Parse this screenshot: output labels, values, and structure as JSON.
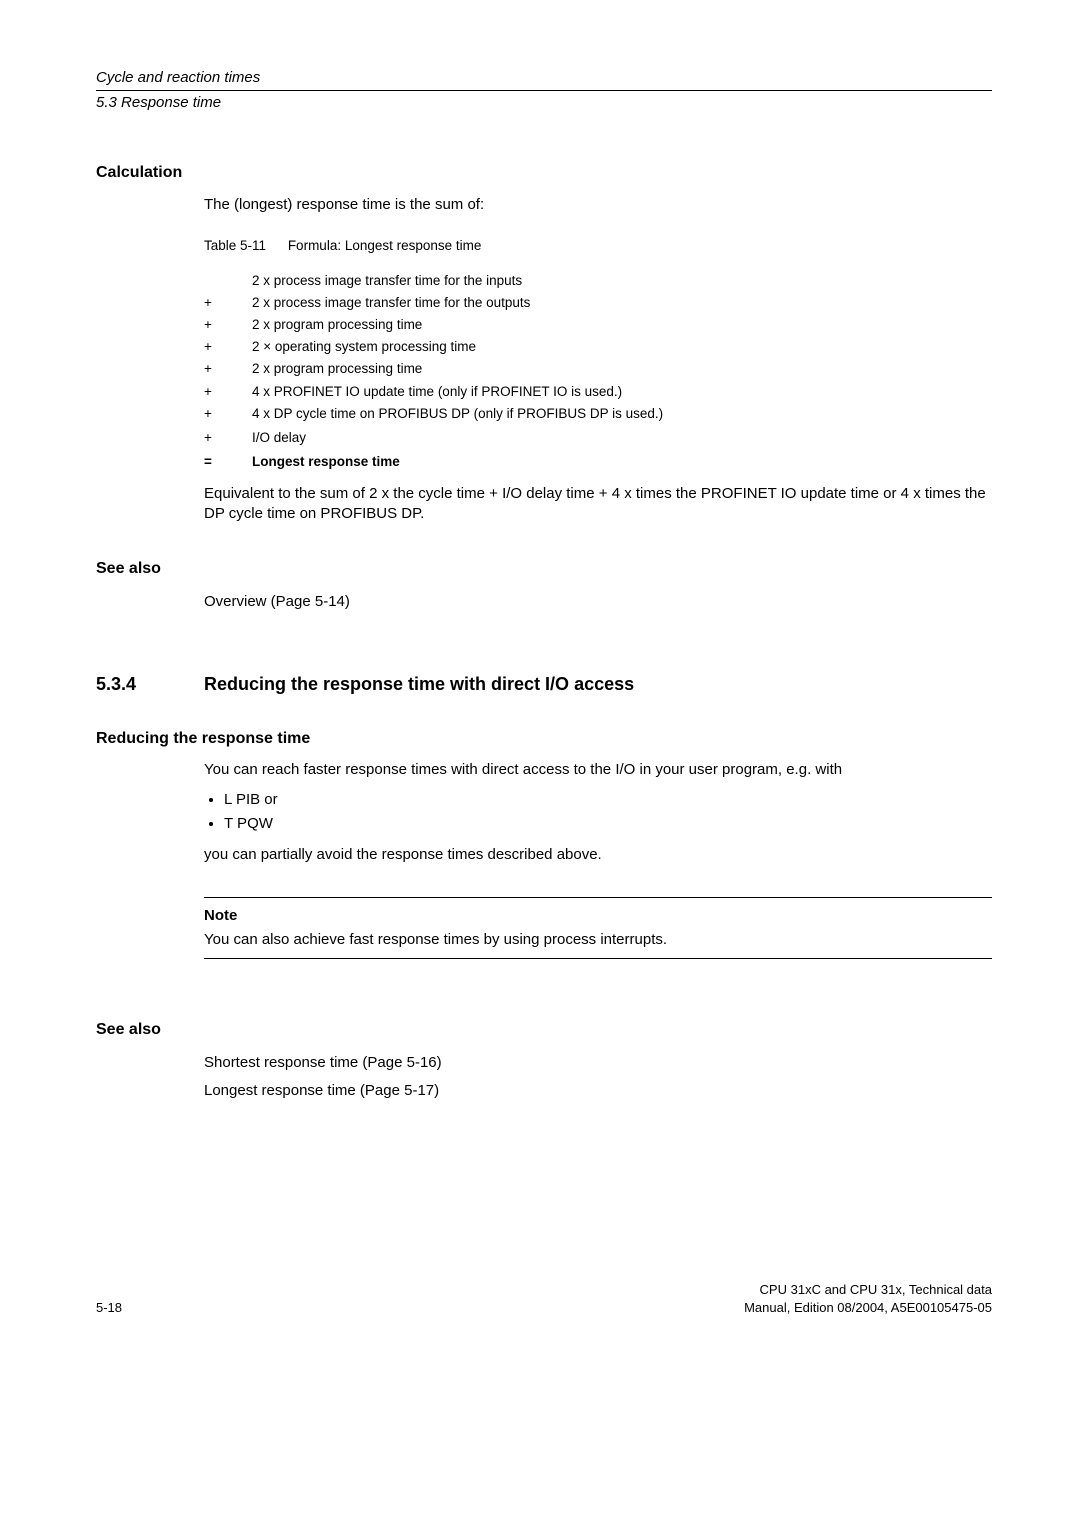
{
  "header": {
    "chapter": "Cycle and reaction times",
    "section": "5.3 Response time"
  },
  "calc": {
    "heading": "Calculation",
    "intro": "The (longest) response time is the sum of:",
    "caption_label": "Table 5-11",
    "caption_text": "Formula: Longest response time",
    "rows": [
      {
        "op": "",
        "text": "2 x process image transfer time for the inputs"
      },
      {
        "op": "+",
        "text": "2 x process image transfer time for the outputs"
      },
      {
        "op": "+",
        "text": "2 x program processing time"
      },
      {
        "op": "+",
        "text": "2 × operating system processing time"
      },
      {
        "op": "+",
        "text": "2 x program processing time"
      },
      {
        "op": "+",
        "text": "4 x PROFINET IO update time (only if PROFINET IO is used.)"
      },
      {
        "op": "+",
        "text": "4 x DP cycle time on PROFIBUS DP (only if PROFIBUS DP is used.)"
      },
      {
        "op": "+",
        "text": "I/O delay"
      }
    ],
    "result_op": "=",
    "result_text": "Longest response time",
    "after": "Equivalent to the sum of 2 x the cycle time + I/O delay time + 4 x times the PROFINET IO update time or 4 x times the DP cycle time on PROFIBUS DP."
  },
  "see1": {
    "heading": "See also",
    "link": "Overview (Page 5-14)"
  },
  "sec534": {
    "num": "5.3.4",
    "title": "Reducing the response time with direct I/O access"
  },
  "reducing": {
    "heading": "Reducing the response time",
    "p1": "You can reach faster response times with direct access to the I/O in your user program, e.g. with",
    "b1": "L  PIB or",
    "b2": "T  PQW",
    "p2": "you can partially avoid the response times described above."
  },
  "note": {
    "label": "Note",
    "text": "You can also achieve fast response times by using process interrupts."
  },
  "see2": {
    "heading": "See also",
    "l1": "Shortest response time (Page 5-16)",
    "l2": "Longest response time (Page 5-17)"
  },
  "footer": {
    "page": "5-18",
    "r1": "CPU 31xC and CPU 31x, Technical data",
    "r2": "Manual, Edition 08/2004, A5E00105475-05"
  }
}
